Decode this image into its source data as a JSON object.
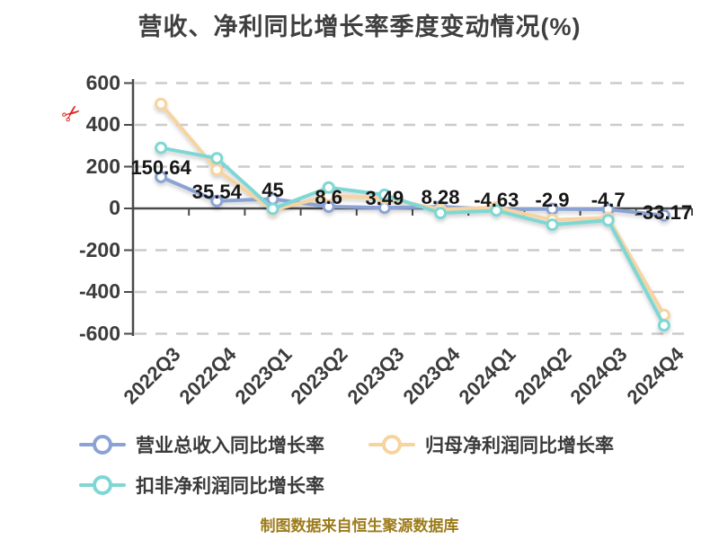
{
  "title": "营收、净利同比增长率季度变动情况(%)",
  "footer": {
    "text": "制图数据来自恒生聚源数据库"
  },
  "icons": {
    "axis_break_glyph": "✂",
    "axis_break_color": "#e0231e"
  },
  "colors": {
    "revenue_line": "#8ba3d4",
    "net_profit_line": "#f7d3a0",
    "deducted_profit_line": "#7ed7d4",
    "axis": "#4a4a4a",
    "grid": "#cbcbcb",
    "data_label": "#161616",
    "footer_text": "#9c7b1a"
  },
  "chart_data": {
    "type": "line",
    "title": "营收、净利同比增长率季度变动情况(%)",
    "categories": [
      "2022Q3",
      "2022Q4",
      "2023Q1",
      "2023Q2",
      "2023Q3",
      "2023Q4",
      "2024Q1",
      "2024Q2",
      "2024Q3",
      "2024Q4"
    ],
    "series": [
      {
        "name": "营业总收入同比增长率",
        "color": "#8ba3d4",
        "values": [
          150.64,
          35.54,
          45,
          8.6,
          3.49,
          8.28,
          -4.63,
          -2.9,
          -4.7,
          -33.17
        ],
        "labels": [
          "150.64",
          "35.54",
          "45",
          "8.6",
          "3.49",
          "8.28",
          "-4.63",
          "-2.9",
          "-4.7",
          "-33.17"
        ]
      },
      {
        "name": "归母净利润同比增长率",
        "color": "#f7d3a0",
        "values": [
          500,
          185,
          -8,
          60,
          50,
          -5,
          5,
          -55,
          -45,
          -510
        ]
      },
      {
        "name": "扣非净利润同比增长率",
        "color": "#7ed7d4",
        "values": [
          290,
          240,
          -2,
          100,
          65,
          -22,
          -10,
          -78,
          -57,
          -560
        ]
      }
    ],
    "ylim": [
      -600,
      600
    ],
    "yticks": [
      600,
      400,
      200,
      0,
      -200,
      -400,
      -600
    ],
    "grid": "horizontal-dashed",
    "x_label_rotation": 45,
    "legend_position": "bottom"
  }
}
